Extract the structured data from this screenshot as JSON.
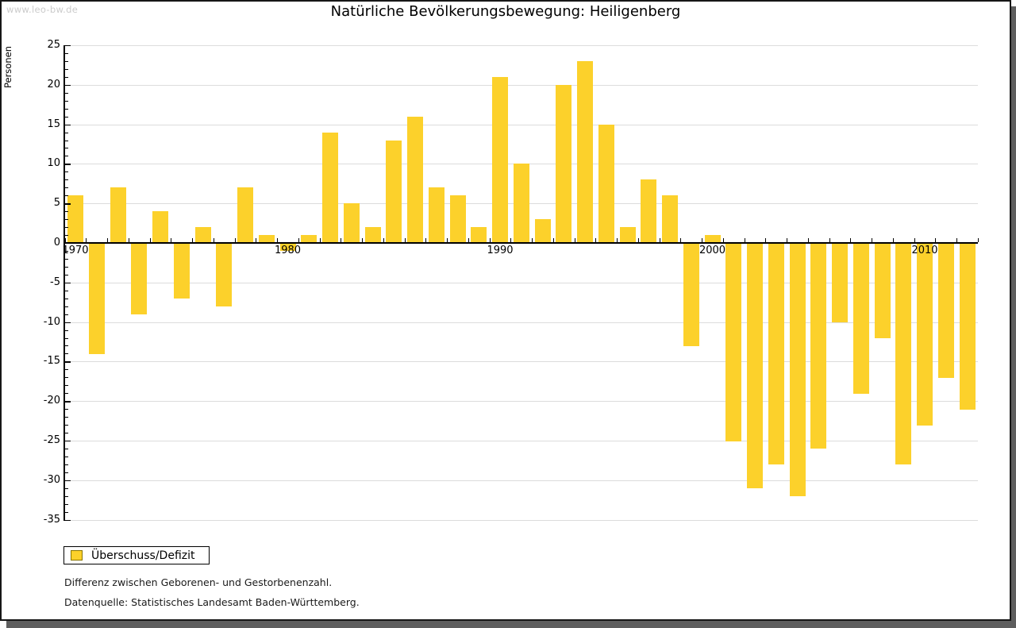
{
  "page": {
    "watermark": "www.leo-bw.de",
    "title": "Natürliche Bevölkerungsbewegung: Heiligenberg"
  },
  "legend": {
    "label": "Überschuss/Defizit",
    "swatch_color": "#FCD12B",
    "swatch_border": "#8A7500"
  },
  "notes": [
    "Differenz zwischen Geborenen- und Gestorbenenzahl.",
    "Datenquelle: Statistisches Landesamt Baden-Württemberg."
  ],
  "colors": {
    "bar": "#FCD12B",
    "grid": "#DCDCDC",
    "axis": "#000000",
    "watermark": "#CBCBCB",
    "frame_shadow": "#5E5E5E"
  },
  "chart_data": {
    "type": "bar",
    "title": "Natürliche Bevölkerungsbewegung: Heiligenberg",
    "xlabel": "",
    "ylabel": "Personen",
    "ylim": [
      -35,
      25
    ],
    "yticks": [
      25,
      20,
      15,
      10,
      5,
      0,
      -5,
      -10,
      -15,
      -20,
      -25,
      -30,
      -35
    ],
    "xticks_labeled": [
      1970,
      1980,
      1990,
      2000,
      2010
    ],
    "grid": true,
    "legend_position": "bottom-left",
    "categories": [
      1970,
      1971,
      1972,
      1973,
      1974,
      1975,
      1976,
      1977,
      1978,
      1979,
      1980,
      1981,
      1982,
      1983,
      1984,
      1985,
      1986,
      1987,
      1988,
      1989,
      1990,
      1991,
      1992,
      1993,
      1994,
      1995,
      1996,
      1997,
      1998,
      1999,
      2000,
      2001,
      2002,
      2003,
      2004,
      2005,
      2006,
      2007,
      2008,
      2009,
      2010,
      2011,
      2012
    ],
    "series": [
      {
        "name": "Überschuss/Defizit",
        "color": "#FCD12B",
        "values": [
          6,
          -14,
          7,
          -9,
          4,
          -7,
          2,
          -8,
          7,
          1,
          -1,
          1,
          14,
          5,
          2,
          13,
          16,
          7,
          6,
          2,
          21,
          10,
          3,
          20,
          23,
          15,
          2,
          8,
          6,
          -13,
          1,
          -25,
          -31,
          -28,
          -32,
          -26,
          -10,
          -19,
          -12,
          -28,
          -23,
          -17,
          -21
        ]
      }
    ]
  }
}
